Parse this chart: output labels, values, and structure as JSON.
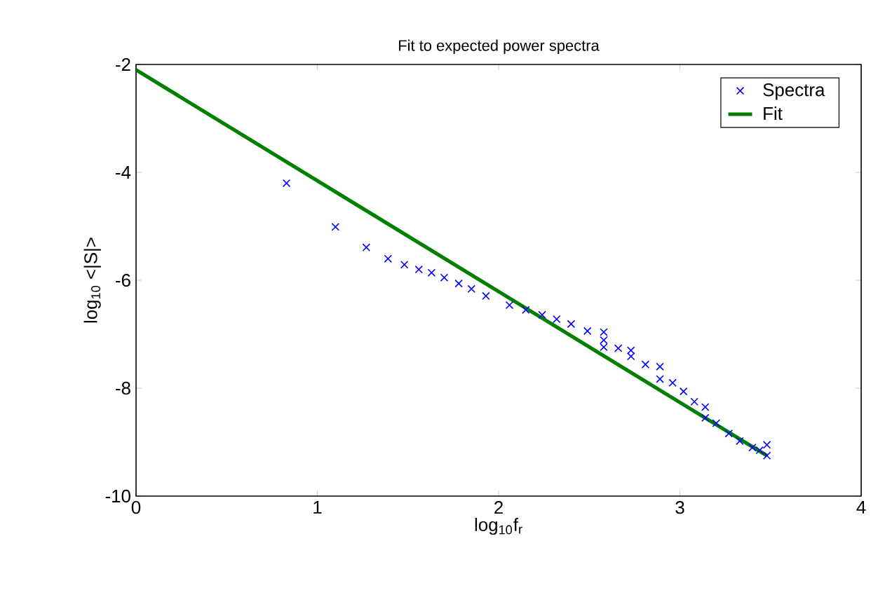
{
  "chart_data": {
    "type": "scatter",
    "title": "Fit to expected power spectra",
    "xlabel": "log$_{10}$f$_{r}$",
    "ylabel": "log$_{10}$ <|S|>",
    "xlim": [
      0,
      4
    ],
    "ylim": [
      -10,
      -2
    ],
    "xticks": [
      0,
      1,
      2,
      3,
      4
    ],
    "yticks": [
      -10,
      -8,
      -6,
      -4,
      -2
    ],
    "legend": "top right",
    "series": [
      {
        "name": "Spectra",
        "marker": "cross",
        "color": "#0000ff",
        "x": [
          0.83,
          1.1,
          1.27,
          1.39,
          1.48,
          1.56,
          1.63,
          1.7,
          1.78,
          1.85,
          1.93,
          2.06,
          2.15,
          2.24,
          2.32,
          2.4,
          2.49,
          2.58,
          2.58,
          2.58,
          2.66,
          2.73,
          2.73,
          2.81,
          2.89,
          2.89,
          2.96,
          3.02,
          3.08,
          3.14,
          3.14,
          3.2,
          3.27,
          3.33,
          3.4,
          3.44,
          3.48,
          3.48
        ],
        "values": [
          -4.2,
          -5.01,
          -5.39,
          -5.6,
          -5.71,
          -5.8,
          -5.86,
          -5.95,
          -6.06,
          -6.16,
          -6.29,
          -6.46,
          -6.55,
          -6.64,
          -6.72,
          -6.81,
          -6.94,
          -6.96,
          -7.11,
          -7.24,
          -7.26,
          -7.3,
          -7.41,
          -7.56,
          -7.6,
          -7.83,
          -7.9,
          -8.06,
          -8.25,
          -8.35,
          -8.55,
          -8.65,
          -8.84,
          -8.98,
          -9.1,
          -9.15,
          -9.05,
          -9.25
        ]
      },
      {
        "name": "Fit",
        "type": "line",
        "marker": "none",
        "color": "#007f00",
        "x": [
          0,
          3.48
        ],
        "values": [
          -2.1,
          -9.25
        ]
      }
    ]
  }
}
